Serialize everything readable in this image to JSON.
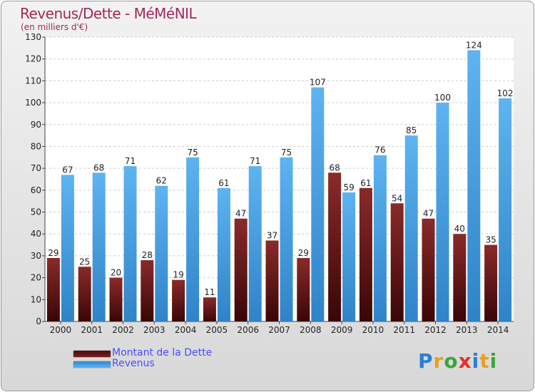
{
  "chart_data": {
    "type": "bar",
    "title": "Revenus/Dette - MéMéNIL",
    "subtitle": "(en milliers d'€)",
    "categories": [
      "2000",
      "2001",
      "2002",
      "2003",
      "2004",
      "2005",
      "2006",
      "2007",
      "2008",
      "2009",
      "2010",
      "2011",
      "2012",
      "2013",
      "2014"
    ],
    "series": [
      {
        "name": "Montant de la Dette",
        "color": "#7a1e1e",
        "values": [
          29,
          25,
          20,
          28,
          19,
          11,
          47,
          37,
          29,
          68,
          61,
          54,
          47,
          40,
          35
        ]
      },
      {
        "name": "Revenus",
        "color": "#4aa3e6",
        "values": [
          67,
          68,
          71,
          62,
          75,
          61,
          71,
          75,
          107,
          59,
          76,
          85,
          100,
          124,
          102
        ]
      }
    ],
    "ylim": [
      0,
      130
    ],
    "yticks": [
      0,
      10,
      20,
      30,
      40,
      50,
      60,
      70,
      80,
      90,
      100,
      110,
      120,
      130
    ],
    "grid": true,
    "legend_position": "bottom-left",
    "logo_text": "Proxiti"
  }
}
